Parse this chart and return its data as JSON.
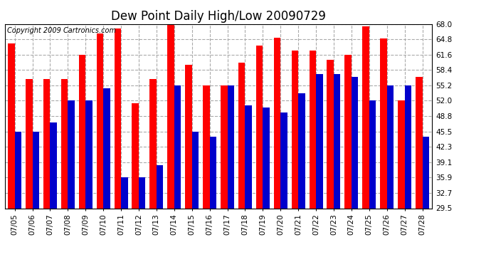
{
  "title": "Dew Point Daily High/Low 20090729",
  "copyright": "Copyright 2009 Cartronics.com",
  "dates": [
    "07/05",
    "07/06",
    "07/07",
    "07/08",
    "07/09",
    "07/10",
    "07/11",
    "07/12",
    "07/13",
    "07/14",
    "07/15",
    "07/16",
    "07/17",
    "07/18",
    "07/19",
    "07/20",
    "07/21",
    "07/22",
    "07/23",
    "07/24",
    "07/25",
    "07/26",
    "07/27",
    "07/28"
  ],
  "highs": [
    64.0,
    56.5,
    56.5,
    56.5,
    61.6,
    66.0,
    67.0,
    51.5,
    56.5,
    68.0,
    59.5,
    55.2,
    55.2,
    60.0,
    63.5,
    65.2,
    62.5,
    62.5,
    60.5,
    61.6,
    67.5,
    65.0,
    52.0,
    57.0
  ],
  "lows": [
    45.5,
    45.5,
    47.5,
    52.0,
    52.0,
    54.5,
    36.0,
    36.0,
    38.5,
    55.2,
    45.5,
    44.5,
    55.2,
    51.0,
    50.5,
    49.5,
    53.5,
    57.5,
    57.5,
    57.0,
    52.0,
    55.2,
    55.2,
    44.5
  ],
  "bar_width": 0.38,
  "high_color": "#ff0000",
  "low_color": "#0000cc",
  "bg_color": "#ffffff",
  "grid_color": "#aaaaaa",
  "ymin": 29.5,
  "ymax": 68.0,
  "yticks": [
    29.5,
    32.7,
    35.9,
    39.1,
    42.3,
    45.5,
    48.8,
    52.0,
    55.2,
    58.4,
    61.6,
    64.8,
    68.0
  ],
  "title_fontsize": 12,
  "tick_fontsize": 7.5,
  "copyright_fontsize": 7
}
